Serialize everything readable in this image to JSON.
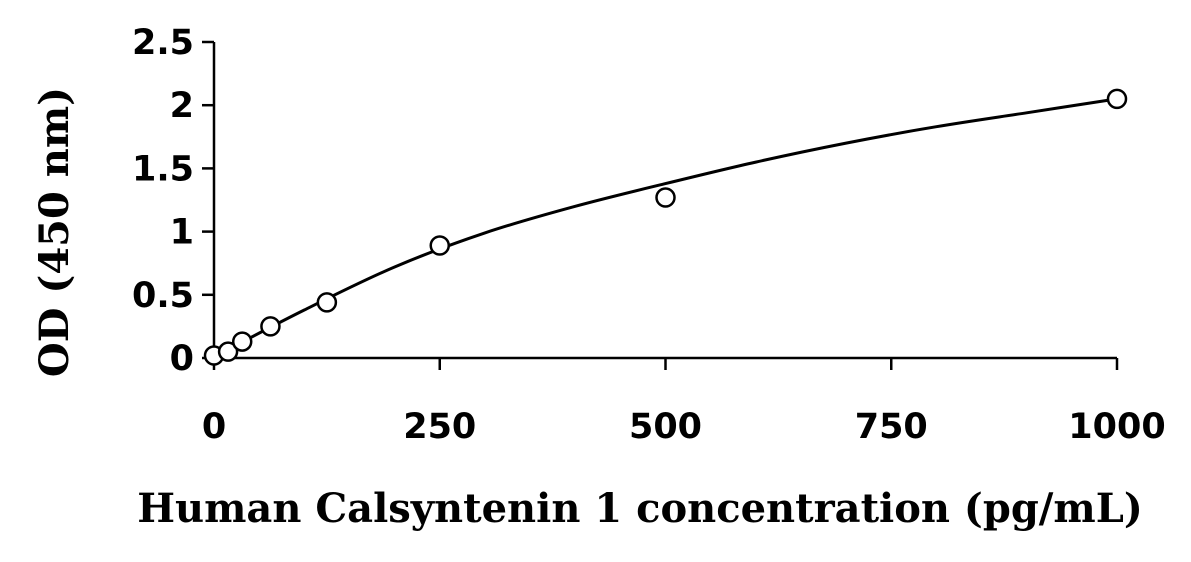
{
  "chart_data": {
    "type": "scatter",
    "title": "",
    "xlabel": "Human Calsyntenin 1 concentration (pg/mL)",
    "ylabel": "OD (450 nm)",
    "xlim": [
      0,
      1000
    ],
    "ylim": [
      0,
      2.5
    ],
    "xticks": [
      0,
      250,
      500,
      750,
      1000
    ],
    "xtick_labels": [
      "0",
      "250",
      "500",
      "750",
      "1000"
    ],
    "yticks": [
      0,
      0.5,
      1,
      1.5,
      2,
      2.5
    ],
    "ytick_labels": [
      "0",
      "0.5",
      "1",
      "1.5",
      "2",
      "2.5"
    ],
    "grid": false,
    "legend": "none",
    "series": [
      {
        "marker": "open-circle",
        "x": [
          0,
          15.6,
          31.25,
          62.5,
          125,
          250,
          500,
          1000
        ],
        "y": [
          0.02,
          0.05,
          0.13,
          0.25,
          0.44,
          0.89,
          1.27,
          2.05
        ]
      }
    ],
    "trendline": {
      "type": "polynomial",
      "x": [
        0,
        100,
        200,
        300,
        400,
        500,
        600,
        700,
        800,
        900,
        1000
      ],
      "y": [
        0.01,
        0.38,
        0.72,
        0.99,
        1.2,
        1.38,
        1.55,
        1.7,
        1.83,
        1.94,
        2.05
      ]
    }
  }
}
